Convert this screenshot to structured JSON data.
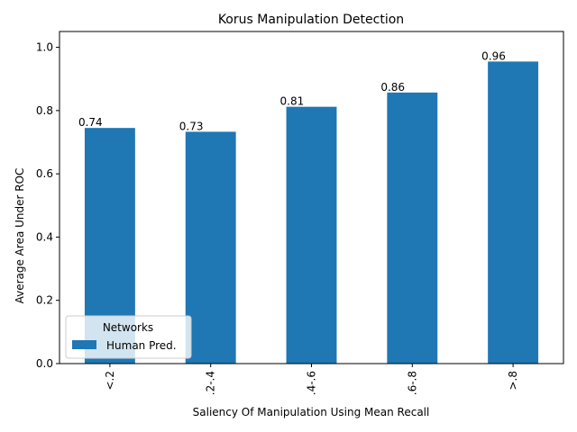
{
  "chart_data": {
    "type": "bar",
    "title": "Korus Manipulation Detection",
    "xlabel": "Saliency Of Manipulation Using Mean Recall",
    "ylabel": "Average Area Under ROC",
    "categories": [
      "<.2",
      ".2-.4",
      ".4-.6",
      ".6-.8",
      ">.8"
    ],
    "series": [
      {
        "name": "Human Pred.",
        "values": [
          0.745,
          0.733,
          0.812,
          0.857,
          0.955
        ],
        "color": "#1f77b4"
      }
    ],
    "data_labels": [
      "0.74",
      "0.73",
      "0.81",
      "0.86",
      "0.96"
    ],
    "ylim": [
      0,
      1.05
    ],
    "yticks": [
      0.0,
      0.2,
      0.4,
      0.6,
      0.8,
      1.0
    ],
    "ytick_labels": [
      "0.0",
      "0.2",
      "0.4",
      "0.6",
      "0.8",
      "1.0"
    ],
    "xtick_rotation": 90,
    "grid": false,
    "legend": {
      "title": "Networks",
      "placement": "lower-left"
    }
  }
}
